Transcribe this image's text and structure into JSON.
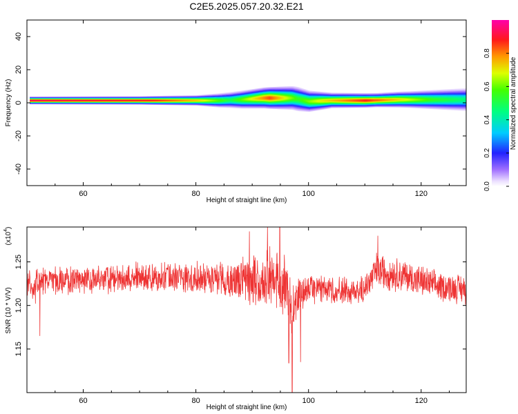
{
  "figure_title": "C2E5.2025.057.20.32.E21",
  "chart_data": [
    {
      "type": "heatmap",
      "xlabel": "Height of straight line (km)",
      "ylabel": "Frequency (Hz)",
      "xlim": [
        50,
        128
      ],
      "ylim": [
        -50,
        50
      ],
      "xticks": [
        "60",
        "80",
        "100",
        "120"
      ],
      "yticks": [
        "-40",
        "-20",
        "0",
        "20",
        "40"
      ],
      "grid": false,
      "colorbar": {
        "label": "Normalized spectral amplitude",
        "range": [
          0,
          1
        ],
        "ticks": [
          "0.0",
          "0.2",
          "0.4",
          "0.6",
          "0.8"
        ]
      },
      "band_center_hz": [
        {
          "x": 50.5,
          "y": 1.5
        },
        {
          "x": 60,
          "y": 1.5
        },
        {
          "x": 70,
          "y": 1.5
        },
        {
          "x": 78,
          "y": 1.5
        },
        {
          "x": 84,
          "y": 1.5
        },
        {
          "x": 88,
          "y": 2.0
        },
        {
          "x": 92,
          "y": 3.0
        },
        {
          "x": 97,
          "y": 3.0
        },
        {
          "x": 100,
          "y": 1.0
        },
        {
          "x": 104,
          "y": 1.5
        },
        {
          "x": 110,
          "y": 1.5
        },
        {
          "x": 116,
          "y": 2.0
        },
        {
          "x": 122,
          "y": 2.0
        },
        {
          "x": 128,
          "y": 2.0
        }
      ],
      "band_halfwidth_hz": [
        {
          "x": 50.5,
          "y": 1.2
        },
        {
          "x": 70,
          "y": 1.3
        },
        {
          "x": 80,
          "y": 1.6
        },
        {
          "x": 88,
          "y": 2.8
        },
        {
          "x": 93,
          "y": 3.4
        },
        {
          "x": 98,
          "y": 3.8
        },
        {
          "x": 104,
          "y": 2.4
        },
        {
          "x": 112,
          "y": 2.2
        },
        {
          "x": 118,
          "y": 2.6
        },
        {
          "x": 128,
          "y": 3.6
        }
      ],
      "band_peak_amplitude": [
        {
          "x": 50.5,
          "y": 0.95
        },
        {
          "x": 72,
          "y": 0.9
        },
        {
          "x": 80,
          "y": 0.75
        },
        {
          "x": 86,
          "y": 0.5
        },
        {
          "x": 93,
          "y": 0.85
        },
        {
          "x": 98,
          "y": 0.55
        },
        {
          "x": 102,
          "y": 0.7
        },
        {
          "x": 110,
          "y": 0.88
        },
        {
          "x": 115,
          "y": 0.75
        },
        {
          "x": 122,
          "y": 0.55
        },
        {
          "x": 128,
          "y": 0.45
        }
      ]
    },
    {
      "type": "line",
      "xlabel": "Height of straight line (km)",
      "ylabel": "SNR (10 * V/V)",
      "y_scale_label": "(x10",
      "y_scale_exponent": "4",
      "xlim": [
        50,
        128
      ],
      "ylim": [
        1.1,
        1.29
      ],
      "xticks": [
        "60",
        "80",
        "100",
        "120"
      ],
      "yticks": [
        "1.15",
        "1.20",
        "1.25"
      ],
      "grid": false,
      "color": "#ee3333",
      "series": [
        {
          "x": [
            50,
            53,
            56,
            60,
            64,
            68,
            72,
            76,
            80,
            84,
            87,
            90,
            92,
            93,
            94,
            95,
            96,
            97,
            98,
            99,
            100,
            103,
            106,
            109,
            111,
            112,
            114,
            117,
            120,
            123,
            126,
            128
          ],
          "mean": [
            1.222,
            1.228,
            1.228,
            1.229,
            1.23,
            1.231,
            1.232,
            1.233,
            1.232,
            1.231,
            1.23,
            1.228,
            1.228,
            1.232,
            1.232,
            1.225,
            1.215,
            1.195,
            1.205,
            1.215,
            1.218,
            1.219,
            1.216,
            1.215,
            1.228,
            1.24,
            1.238,
            1.234,
            1.228,
            1.222,
            1.22,
            1.219
          ],
          "amplitude": [
            0.016,
            0.015,
            0.015,
            0.015,
            0.016,
            0.016,
            0.016,
            0.016,
            0.016,
            0.018,
            0.021,
            0.026,
            0.03,
            0.034,
            0.032,
            0.03,
            0.04,
            0.036,
            0.026,
            0.018,
            0.016,
            0.015,
            0.015,
            0.015,
            0.018,
            0.02,
            0.019,
            0.018,
            0.017,
            0.016,
            0.016,
            0.016
          ]
        }
      ],
      "notable_extremes": [
        {
          "x": 51.5,
          "y": 1.202
        },
        {
          "x": 52.3,
          "y": 1.165
        },
        {
          "x": 89.5,
          "y": 1.285
        },
        {
          "x": 92.7,
          "y": 1.29
        },
        {
          "x": 94.9,
          "y": 1.29
        },
        {
          "x": 96.5,
          "y": 1.134
        },
        {
          "x": 97.1,
          "y": 1.1
        },
        {
          "x": 98.6,
          "y": 1.135
        },
        {
          "x": 112.3,
          "y": 1.28
        }
      ]
    }
  ]
}
